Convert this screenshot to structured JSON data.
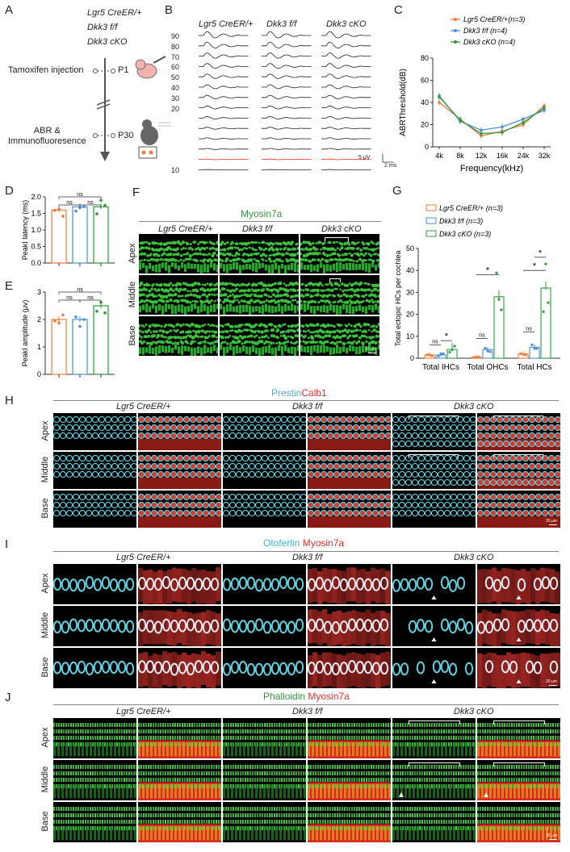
{
  "panels": {
    "A": {
      "label": "A",
      "genotypes": [
        "Lgr5 CreER/+",
        "Dkk3 f/f",
        "Dkk3 cKO"
      ],
      "steps": [
        {
          "text": "Tamoxifen  injection",
          "time": "P1"
        },
        {
          "text": "ABR &\nImmunofluoresence",
          "time": "P30"
        }
      ]
    },
    "B": {
      "label": "B",
      "columns": [
        "Lgr5 CreER/+",
        "Dkk3 f/f",
        "Dkk3 cKO"
      ],
      "levels": [
        "90",
        "80",
        "70",
        "60",
        "50",
        "40",
        "30",
        "20",
        "10"
      ],
      "scale_v": "5 μV",
      "scale_t": "2 ms"
    },
    "D": {
      "label": "D",
      "ylabel": "PeakI latency (ms)",
      "yticks": [
        "0.0",
        "0.5",
        "1.0",
        "1.5",
        "2.0"
      ],
      "ns": [
        "ns",
        "ns",
        "ns"
      ]
    },
    "E": {
      "label": "E",
      "ylabel": "PeakI amplitude (μv)",
      "yticks": [
        "0",
        "1",
        "2",
        "3"
      ],
      "ns": [
        "ns",
        "ns",
        "ns"
      ]
    },
    "F": {
      "label": "F",
      "title": "Myosin7a",
      "columns": [
        "Lgr5 CreER/+",
        "Dkk3 f/f",
        "Dkk3 cKO"
      ],
      "rows": [
        "Apex",
        "Middle",
        "Base"
      ],
      "scale": "20 μm"
    },
    "G": {
      "label": "G",
      "ns": [
        "ns",
        "*",
        "ns",
        "*",
        "ns",
        "*",
        "*"
      ]
    },
    "H": {
      "label": "H",
      "title_a": "Prestin",
      "title_b": "Calb1",
      "columns": [
        "Lgr5 CreER/+",
        "Dkk3 f/f",
        "Dkk3 cKO"
      ],
      "rows": [
        "Apex",
        "Middle",
        "Base"
      ],
      "scale": "20 μm"
    },
    "I": {
      "label": "I",
      "title_a": "Otoferlin",
      "title_b": "Myosin7a",
      "columns": [
        "Lgr5 CreER/+",
        "Dkk3 f/f",
        "Dkk3 cKO"
      ],
      "rows": [
        "Apex",
        "Middle",
        "Base"
      ],
      "scale": "20 μm"
    },
    "J": {
      "label": "J",
      "title_a": "Phalloidin",
      "title_b": "Myosin7a",
      "columns": [
        "Lgr5 CreER/+",
        "Dkk3 f/f",
        "Dkk3 cKO"
      ],
      "rows": [
        "Apex",
        "Middle",
        "Base"
      ],
      "scale": "20 μm"
    }
  },
  "colors": {
    "orange": "#f07a3a",
    "blue": "#4b8fd6",
    "green": "#2e9a3c",
    "cyan": "#5fd1e0",
    "red": "#e8302a"
  },
  "chart_data": [
    {
      "type": "line",
      "id": "C",
      "label": "C",
      "xlabel": "Frequency(kHz)",
      "ylabel": "ABRThreshold(dB)",
      "categories": [
        "4k",
        "8k",
        "12k",
        "16k",
        "24k",
        "32k"
      ],
      "ylim": [
        0,
        80
      ],
      "yticks": [
        0,
        20,
        40,
        60,
        80
      ],
      "legend": "top-right",
      "series": [
        {
          "name": "Lgr5 CreER/+(n=3)",
          "color": "#f07a3a",
          "values": [
            40,
            25,
            10,
            14,
            20,
            37
          ]
        },
        {
          "name": "Dkk3 f/f (n=4)",
          "color": "#4b8fd6",
          "values": [
            46,
            23,
            15,
            18,
            25,
            33
          ]
        },
        {
          "name": "Dkk3 cKO (n=4)",
          "color": "#2e9a3c",
          "values": [
            45,
            24,
            12,
            13,
            22,
            35
          ]
        }
      ]
    },
    {
      "type": "bar",
      "id": "D",
      "label": "D",
      "ylabel": "PeakI latency (ms)",
      "ylim": [
        0,
        2
      ],
      "categories": [
        "Lgr5 CreER/+",
        "Dkk3 f/f",
        "Dkk3 cKO"
      ],
      "values": [
        1.6,
        1.7,
        1.7
      ]
    },
    {
      "type": "bar",
      "id": "E",
      "label": "E",
      "ylabel": "PeakI amplitude (μv)",
      "ylim": [
        0,
        3
      ],
      "categories": [
        "Lgr5 CreER/+",
        "Dkk3 f/f",
        "Dkk3 cKO"
      ],
      "values": [
        2.0,
        2.0,
        2.5
      ]
    },
    {
      "type": "bar",
      "id": "G",
      "label": "G",
      "ylabel": "Total ectopic HCs per cochlea",
      "ylim": [
        0,
        50
      ],
      "yticks": [
        0,
        10,
        20,
        30,
        40,
        50
      ],
      "categories": [
        "Total IHCs",
        "Total OHCs",
        "Total HCs"
      ],
      "legend": "top-left",
      "series": [
        {
          "name": "Lgr5 CreER/+ (n=3)",
          "color": "#f07a3a",
          "values": [
            1.5,
            0.5,
            2
          ]
        },
        {
          "name": "Dkk3 f/f (n=3)",
          "color": "#4b8fd6",
          "values": [
            1.5,
            4,
            5
          ]
        },
        {
          "name": "Dkk3 cKO (n=3)",
          "color": "#2e9a3c",
          "values": [
            4,
            28,
            32
          ]
        }
      ]
    }
  ]
}
